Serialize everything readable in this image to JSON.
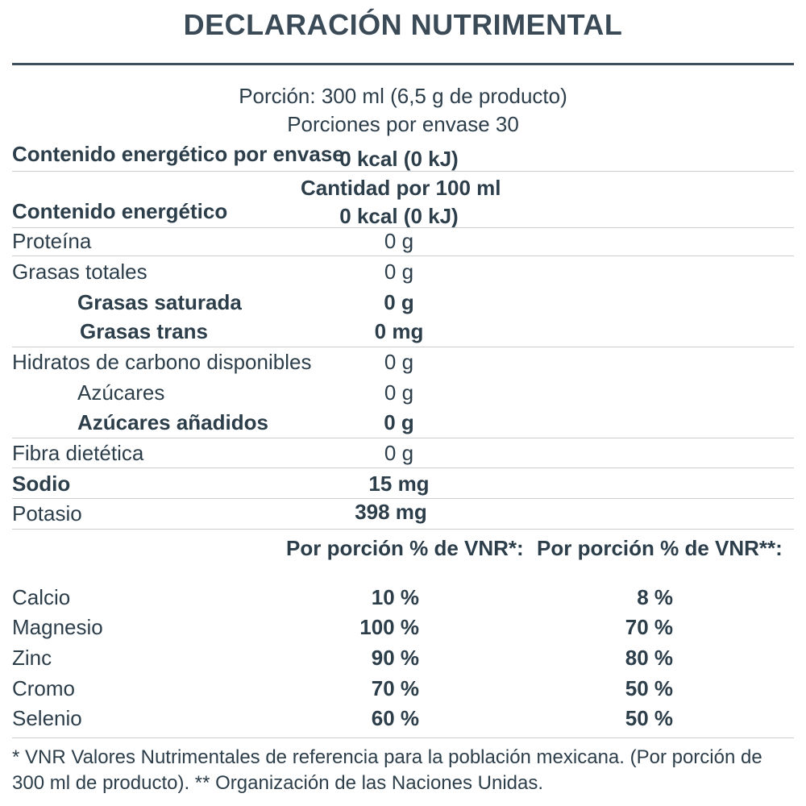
{
  "title": "DECLARACIÓN NUTRIMENTAL",
  "serving": {
    "portion": "Porción: 300 ml (6,5 g de producto)",
    "per_container": "Porciones por envase 30"
  },
  "energy_per_container": {
    "label": "Contenido energético por envase",
    "value": "0 kcal (0 kJ)"
  },
  "per100_header": "Cantidad por 100 ml",
  "energy": {
    "label": "Contenido energético",
    "value": "0 kcal (0 kJ)"
  },
  "nutrients": [
    {
      "label": "Proteína",
      "value": "0 g"
    },
    {
      "label": "Grasas totales",
      "value": "0 g"
    },
    {
      "label": "Grasas saturada",
      "value": "0 g"
    },
    {
      "label": "Grasas trans",
      "value": "0 mg"
    },
    {
      "label": "Hidratos de carbono disponibles",
      "value": "0 g"
    },
    {
      "label": "Azúcares",
      "value": "0 g"
    },
    {
      "label": "Azúcares añadidos",
      "value": "0 g"
    },
    {
      "label": "Fibra dietética",
      "value": "0 g"
    },
    {
      "label": "Sodio",
      "value": "15 mg"
    },
    {
      "label": "Potasio",
      "value": "398 mg"
    }
  ],
  "vnr_headers": [
    "Por porción % de VNR*:",
    "Por porción % de VNR**:"
  ],
  "minerals": [
    {
      "label": "Calcio",
      "vnr1": "10 %",
      "vnr2": "8 %"
    },
    {
      "label": "Magnesio",
      "vnr1": "100 %",
      "vnr2": "70 %"
    },
    {
      "label": "Zinc",
      "vnr1": "90 %",
      "vnr2": "80 %"
    },
    {
      "label": "Cromo",
      "vnr1": "70 %",
      "vnr2": "50 %"
    },
    {
      "label": "Selenio",
      "vnr1": "60 %",
      "vnr2": "50 %"
    }
  ],
  "footnote": "* VNR Valores Nutrimentales de referencia para la población mexicana. (Por porción de 300 ml de producto). ** Organización de las Naciones Unidas."
}
